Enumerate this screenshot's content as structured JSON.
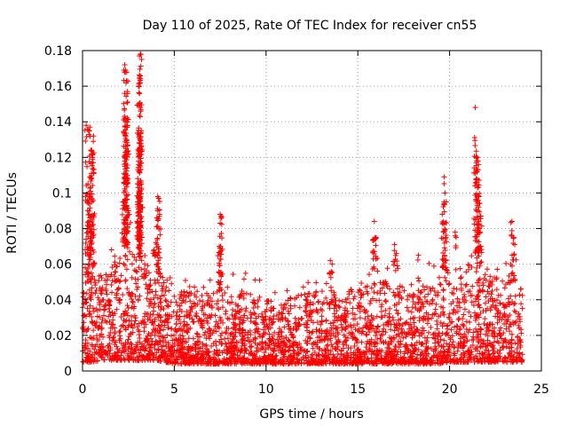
{
  "chart_data": {
    "type": "scatter",
    "title": "Day 110 of 2025, Rate Of TEC Index for receiver cn55",
    "xlabel": "GPS time / hours",
    "ylabel": "ROTI / TECUs",
    "xlim": [
      0,
      25
    ],
    "ylim": [
      0,
      0.18
    ],
    "x_ticks": [
      0,
      5,
      10,
      15,
      20,
      25
    ],
    "x_tick_labels": [
      "0",
      "5",
      "10",
      "15",
      "20",
      "25"
    ],
    "y_ticks": [
      0,
      0.02,
      0.04,
      0.06,
      0.08,
      0.1,
      0.12,
      0.14,
      0.16,
      0.18
    ],
    "y_tick_labels": [
      "0",
      "0.02",
      "0.04",
      "0.06",
      "0.08",
      "0.1",
      "0.12",
      "0.14",
      "0.16",
      "0.18"
    ],
    "grid": true,
    "legend": "none",
    "marker": "+",
    "color": "#ff0000",
    "series": [
      {
        "name": "ROTI",
        "baseline_envelope": {
          "x": [
            0,
            0.5,
            1,
            1.5,
            2,
            2.5,
            3,
            3.5,
            4,
            4.5,
            5,
            6,
            7,
            8,
            9,
            10,
            11,
            12,
            13,
            14,
            15,
            16,
            17,
            18,
            19,
            19.5,
            20,
            21,
            21.5,
            22,
            23,
            23.5,
            24
          ],
          "y_low": [
            0.005,
            0.005,
            0.006,
            0.006,
            0.006,
            0.006,
            0.006,
            0.006,
            0.006,
            0.005,
            0.004,
            0.004,
            0.004,
            0.004,
            0.004,
            0.004,
            0.004,
            0.004,
            0.004,
            0.004,
            0.004,
            0.004,
            0.004,
            0.004,
            0.004,
            0.004,
            0.005,
            0.005,
            0.005,
            0.005,
            0.005,
            0.005,
            0.005
          ],
          "y_high": [
            0.045,
            0.05,
            0.055,
            0.06,
            0.07,
            0.07,
            0.065,
            0.06,
            0.055,
            0.05,
            0.045,
            0.045,
            0.045,
            0.045,
            0.045,
            0.04,
            0.04,
            0.045,
            0.045,
            0.045,
            0.05,
            0.05,
            0.05,
            0.05,
            0.05,
            0.055,
            0.06,
            0.06,
            0.065,
            0.055,
            0.05,
            0.05,
            0.045
          ]
        },
        "points": [
          [
            0.2,
            0.138
          ],
          [
            0.4,
            0.137
          ],
          [
            0.45,
            0.124
          ],
          [
            0.5,
            0.124
          ],
          [
            0.3,
            0.105
          ],
          [
            0.35,
            0.1
          ],
          [
            0.4,
            0.086
          ],
          [
            0.55,
            0.117
          ],
          [
            0.6,
            0.132
          ],
          [
            2.3,
            0.172
          ],
          [
            2.35,
            0.169
          ],
          [
            2.4,
            0.163
          ],
          [
            2.45,
            0.157
          ],
          [
            2.3,
            0.142
          ],
          [
            2.4,
            0.137
          ],
          [
            2.35,
            0.126
          ],
          [
            2.3,
            0.115
          ],
          [
            2.4,
            0.107
          ],
          [
            2.2,
            0.095
          ],
          [
            2.5,
            0.09
          ],
          [
            3.1,
            0.177
          ],
          [
            3.15,
            0.178
          ],
          [
            3.1,
            0.165
          ],
          [
            3.05,
            0.16
          ],
          [
            3.15,
            0.148
          ],
          [
            3.2,
            0.135
          ],
          [
            3.1,
            0.128
          ],
          [
            3.05,
            0.122
          ],
          [
            3.2,
            0.105
          ],
          [
            3.1,
            0.1
          ],
          [
            3.0,
            0.095
          ],
          [
            4.1,
            0.098
          ],
          [
            4.15,
            0.097
          ],
          [
            4.1,
            0.09
          ],
          [
            4.2,
            0.088
          ],
          [
            4.0,
            0.072
          ],
          [
            3.9,
            0.068
          ],
          [
            7.5,
            0.088
          ],
          [
            7.55,
            0.087
          ],
          [
            7.5,
            0.083
          ],
          [
            7.45,
            0.07
          ],
          [
            7.5,
            0.069
          ],
          [
            13.5,
            0.062
          ],
          [
            13.6,
            0.06
          ],
          [
            15.9,
            0.084
          ],
          [
            15.85,
            0.074
          ],
          [
            16.0,
            0.075
          ],
          [
            17.0,
            0.071
          ],
          [
            17.1,
            0.066
          ],
          [
            18.3,
            0.065
          ],
          [
            19.7,
            0.109
          ],
          [
            19.75,
            0.1
          ],
          [
            19.6,
            0.088
          ],
          [
            19.7,
            0.083
          ],
          [
            19.8,
            0.075
          ],
          [
            20.3,
            0.078
          ],
          [
            21.4,
            0.148
          ],
          [
            21.5,
            0.12
          ],
          [
            21.55,
            0.118
          ],
          [
            21.5,
            0.113
          ],
          [
            21.45,
            0.108
          ],
          [
            21.6,
            0.098
          ],
          [
            21.55,
            0.09
          ],
          [
            21.7,
            0.087
          ],
          [
            21.6,
            0.08
          ],
          [
            21.7,
            0.07
          ],
          [
            23.4,
            0.084
          ],
          [
            23.5,
            0.075
          ],
          [
            23.55,
            0.071
          ],
          [
            23.4,
            0.065
          ]
        ]
      }
    ]
  }
}
